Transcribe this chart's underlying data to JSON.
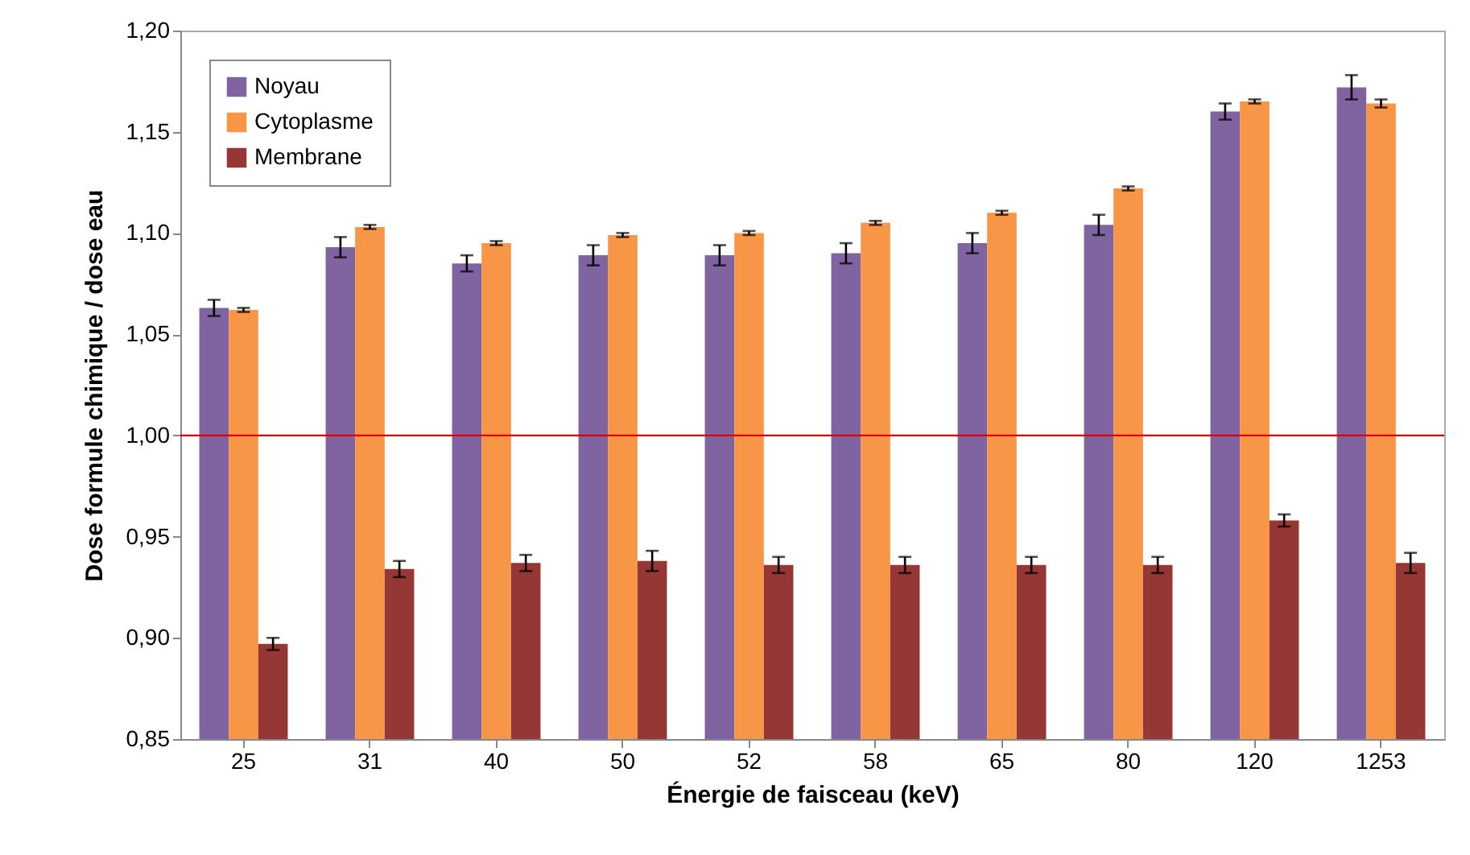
{
  "chart_data": {
    "type": "bar",
    "xlabel": "Énergie de faisceau (keV)",
    "ylabel": "Dose formule chimique / dose eau",
    "categories": [
      "25",
      "31",
      "40",
      "50",
      "52",
      "58",
      "65",
      "80",
      "120",
      "1253"
    ],
    "series": [
      {
        "name": "Noyau",
        "color": "#8064a2",
        "values": [
          1.063,
          1.093,
          1.085,
          1.089,
          1.089,
          1.09,
          1.095,
          1.104,
          1.16,
          1.172
        ],
        "errors": [
          0.004,
          0.005,
          0.004,
          0.005,
          0.005,
          0.005,
          0.005,
          0.005,
          0.004,
          0.006
        ]
      },
      {
        "name": "Cytoplasme",
        "color": "#f79646",
        "values": [
          1.062,
          1.103,
          1.095,
          1.099,
          1.1,
          1.105,
          1.11,
          1.122,
          1.165,
          1.164
        ],
        "errors": [
          0.001,
          0.001,
          0.001,
          0.001,
          0.001,
          0.001,
          0.001,
          0.001,
          0.001,
          0.002
        ]
      },
      {
        "name": "Membrane",
        "color": "#953735",
        "values": [
          0.897,
          0.934,
          0.937,
          0.938,
          0.936,
          0.936,
          0.936,
          0.936,
          0.958,
          0.937
        ],
        "errors": [
          0.003,
          0.004,
          0.004,
          0.005,
          0.004,
          0.004,
          0.004,
          0.004,
          0.003,
          0.005
        ]
      }
    ],
    "ylim": [
      0.85,
      1.2
    ],
    "yticks": [
      {
        "value": 0.85,
        "label": "0,85"
      },
      {
        "value": 0.9,
        "label": "0,90"
      },
      {
        "value": 0.95,
        "label": "0,95"
      },
      {
        "value": 1.0,
        "label": "1,00"
      },
      {
        "value": 1.05,
        "label": "1,05"
      },
      {
        "value": 1.1,
        "label": "1,10"
      },
      {
        "value": 1.15,
        "label": "1,15"
      },
      {
        "value": 1.2,
        "label": "1,20"
      }
    ],
    "ref_lines": [
      {
        "axis": "y",
        "value": 1.0,
        "color": "#e00000"
      }
    ],
    "grid": false,
    "legend": "top left"
  }
}
